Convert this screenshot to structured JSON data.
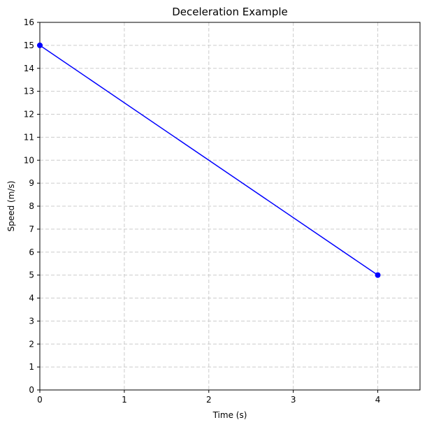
{
  "chart_data": {
    "type": "line",
    "title": "Deceleration Example",
    "xlabel": "Time (s)",
    "ylabel": "Speed (m/s)",
    "xlim": [
      0,
      4.5
    ],
    "ylim": [
      0,
      16
    ],
    "x_ticks": [
      0,
      1,
      2,
      3,
      4
    ],
    "y_ticks": [
      0,
      1,
      2,
      3,
      4,
      5,
      6,
      7,
      8,
      9,
      10,
      11,
      12,
      13,
      14,
      15,
      16
    ],
    "grid": true,
    "series": [
      {
        "x": [
          0,
          4
        ],
        "y": [
          15,
          5
        ],
        "color": "#0000ff",
        "markers": true
      }
    ]
  }
}
